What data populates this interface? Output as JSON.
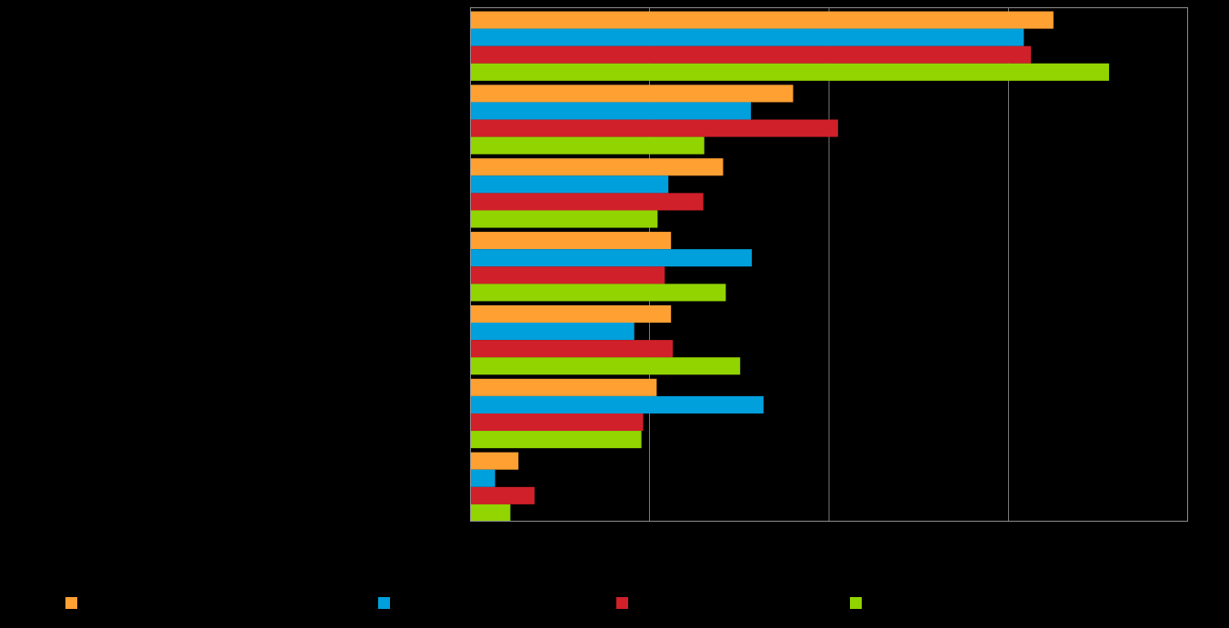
{
  "chart_data": {
    "type": "bar",
    "orientation": "horizontal",
    "categories": [
      "",
      "",
      "",
      "",
      "",
      "",
      ""
    ],
    "series": [
      {
        "color": "#FFA033",
        "values": [
          65.0,
          36.0,
          28.2,
          22.4,
          22.4,
          20.8,
          5.4
        ]
      },
      {
        "color": "#00A0DC",
        "values": [
          61.7,
          31.3,
          22.1,
          31.4,
          18.3,
          32.7,
          2.8
        ]
      },
      {
        "color": "#D0202A",
        "values": [
          62.5,
          41.0,
          26.0,
          21.7,
          22.6,
          19.3,
          7.2
        ]
      },
      {
        "color": "#92D400",
        "values": [
          71.2,
          26.1,
          20.9,
          28.5,
          30.1,
          19.1,
          4.5
        ]
      }
    ],
    "xlim": [
      0,
      80
    ],
    "grid": true,
    "legend_position": "bottom"
  }
}
